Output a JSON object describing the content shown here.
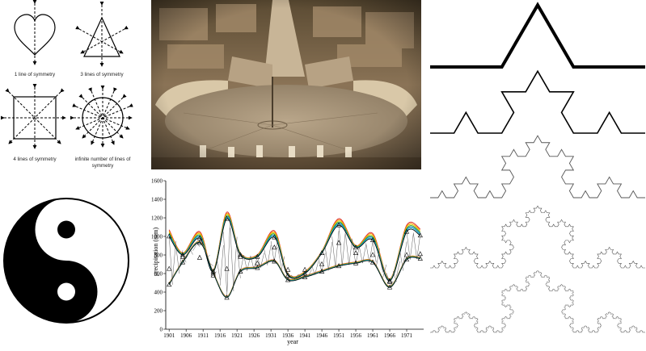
{
  "symmetry_panel": {
    "captions": [
      "1 line of symmetry",
      "3 lines of symmetry",
      "4 lines of symmetry",
      "infinite number of lines of",
      "symmetry"
    ]
  },
  "photo_panel": {
    "subject": "St. Peter's Square aerial view"
  },
  "koch_panel": {
    "iterations": [
      1,
      2,
      3,
      4,
      5
    ]
  },
  "yinyang_panel": {
    "colors": {
      "dark": "#000000",
      "light": "#ffffff"
    }
  },
  "chart_data": {
    "type": "line",
    "xlabel": "year",
    "ylabel": "precipitation (mm)",
    "xlim": [
      1900,
      1976
    ],
    "ylim": [
      0,
      1600
    ],
    "x_ticks": [
      "1901",
      "1906",
      "1911",
      "1916",
      "1921",
      "1926",
      "1931",
      "1936",
      "1941",
      "1946",
      "1951",
      "1956",
      "1961",
      "1966",
      "1971"
    ],
    "y_ticks": [
      "0",
      "200",
      "400",
      "600",
      "800",
      "1000",
      "1200",
      "1400",
      "1600"
    ],
    "series": [
      {
        "values_x": [
          1901,
          1905,
          1910,
          1914,
          1918,
          1922,
          1927,
          1932,
          1936,
          1941,
          1946,
          1951,
          1956,
          1961,
          1966,
          1971,
          1975
        ],
        "upper": [
          1000,
          800,
          980,
          620,
          1190,
          800,
          780,
          990,
          580,
          600,
          820,
          1120,
          880,
          960,
          520,
          1050,
          1010
        ],
        "lower": [
          480,
          720,
          930,
          600,
          340,
          620,
          660,
          730,
          530,
          560,
          620,
          680,
          710,
          720,
          450,
          750,
          760
        ],
        "observed": [
          650,
          780,
          770,
          580,
          650,
          780,
          710,
          880,
          640,
          640,
          700,
          930,
          820,
          800,
          510,
          800,
          810
        ]
      }
    ]
  }
}
